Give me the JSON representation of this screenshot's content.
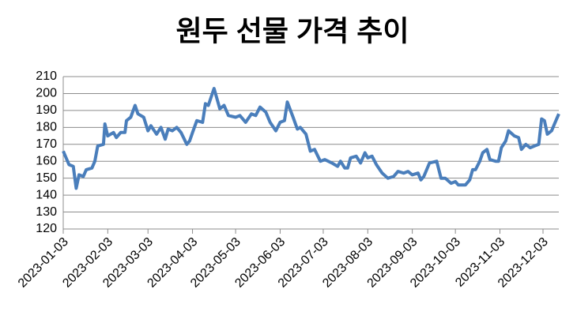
{
  "chart_data": {
    "type": "line",
    "title": "원두 선물 가격 추이",
    "x": [
      "2023-01-03",
      "2023-01-07",
      "2023-01-10",
      "2023-01-12",
      "2023-01-14",
      "2023-01-17",
      "2023-01-19",
      "2023-01-23",
      "2023-01-25",
      "2023-01-27",
      "2023-01-31",
      "2023-02-01",
      "2023-02-03",
      "2023-02-07",
      "2023-02-09",
      "2023-02-12",
      "2023-02-15",
      "2023-02-16",
      "2023-02-19",
      "2023-02-22",
      "2023-02-24",
      "2023-02-28",
      "2023-03-03",
      "2023-03-05",
      "2023-03-09",
      "2023-03-12",
      "2023-03-15",
      "2023-03-17",
      "2023-03-20",
      "2023-03-23",
      "2023-03-26",
      "2023-03-30",
      "2023-04-01",
      "2023-04-03",
      "2023-04-06",
      "2023-04-10",
      "2023-04-12",
      "2023-04-14",
      "2023-04-18",
      "2023-04-22",
      "2023-04-25",
      "2023-04-28",
      "2023-05-03",
      "2023-05-06",
      "2023-05-10",
      "2023-05-14",
      "2023-05-17",
      "2023-05-20",
      "2023-05-24",
      "2023-05-27",
      "2023-05-31",
      "2023-06-03",
      "2023-06-06",
      "2023-06-08",
      "2023-06-12",
      "2023-06-15",
      "2023-06-17",
      "2023-06-21",
      "2023-06-24",
      "2023-06-27",
      "2023-07-01",
      "2023-07-04",
      "2023-07-09",
      "2023-07-13",
      "2023-07-15",
      "2023-07-18",
      "2023-07-20",
      "2023-07-22",
      "2023-07-26",
      "2023-07-29",
      "2023-08-01",
      "2023-08-03",
      "2023-08-06",
      "2023-08-09",
      "2023-08-13",
      "2023-08-17",
      "2023-08-21",
      "2023-08-24",
      "2023-08-28",
      "2023-08-31",
      "2023-09-03",
      "2023-09-07",
      "2023-09-09",
      "2023-09-11",
      "2023-09-15",
      "2023-09-20",
      "2023-09-23",
      "2023-09-26",
      "2023-09-30",
      "2023-10-03",
      "2023-10-05",
      "2023-10-10",
      "2023-10-13",
      "2023-10-15",
      "2023-10-17",
      "2023-10-20",
      "2023-10-22",
      "2023-10-25",
      "2023-10-27",
      "2023-10-31",
      "2023-11-02",
      "2023-11-04",
      "2023-11-07",
      "2023-11-09",
      "2023-11-13",
      "2023-11-16",
      "2023-11-18",
      "2023-11-21",
      "2023-11-24",
      "2023-11-27",
      "2023-11-30",
      "2023-12-02",
      "2023-12-04",
      "2023-12-06",
      "2023-12-09",
      "2023-12-11",
      "2023-12-14"
    ],
    "series": [
      {
        "name": "원두 선물 가격",
        "color": "#4a7ebb",
        "values": [
          166,
          158,
          157,
          144,
          152,
          151,
          155,
          156,
          160,
          169,
          170,
          182,
          175,
          177,
          174,
          177,
          177,
          184,
          186,
          193,
          188,
          186,
          178,
          181,
          176,
          180,
          173,
          179,
          178,
          180,
          177,
          170,
          172,
          177,
          184,
          183,
          194,
          193,
          203,
          191,
          193,
          187,
          186,
          187,
          183,
          188,
          187,
          192,
          189,
          183,
          178,
          183,
          184,
          195,
          186,
          179,
          180,
          176,
          166,
          167,
          160,
          161,
          159,
          157,
          160,
          156,
          156,
          162,
          163,
          159,
          165,
          162,
          163,
          158,
          153,
          150,
          151,
          154,
          153,
          154,
          152,
          153,
          149,
          151,
          159,
          160,
          150,
          150,
          147,
          148,
          146,
          146,
          149,
          155,
          155,
          160,
          165,
          167,
          161,
          160,
          160,
          168,
          172,
          178,
          175,
          174,
          167,
          170,
          168,
          169,
          170,
          185,
          184,
          176,
          178,
          182,
          188
        ]
      }
    ],
    "xlim": [
      "2023-01-03",
      "2023-12-14"
    ],
    "xticks": [
      "2023-01-03",
      "2023-02-03",
      "2023-03-03",
      "2023-04-03",
      "2023-05-03",
      "2023-06-03",
      "2023-07-03",
      "2023-08-03",
      "2023-09-03",
      "2023-10-03",
      "2023-11-03",
      "2023-12-03"
    ],
    "ylim": [
      120,
      210
    ],
    "yticks": [
      120,
      130,
      140,
      150,
      160,
      170,
      180,
      190,
      200,
      210
    ],
    "grid": true
  }
}
